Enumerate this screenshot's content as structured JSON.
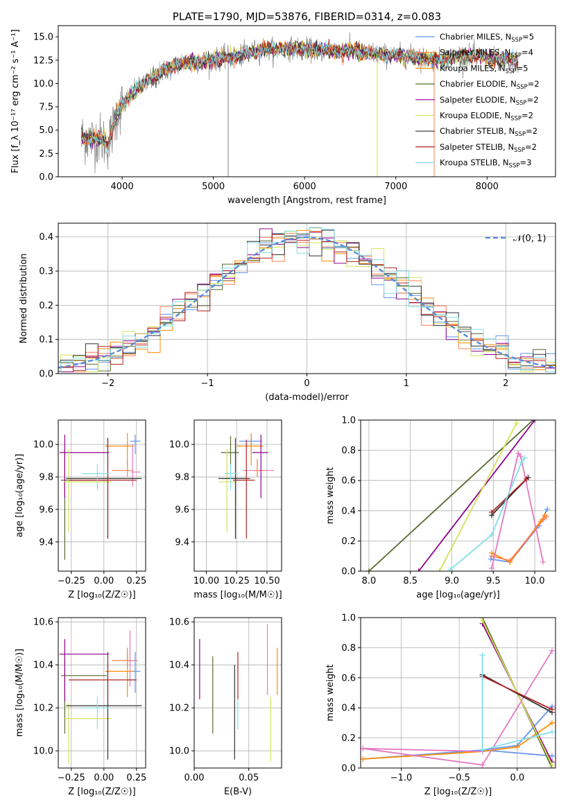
{
  "chart_data": [
    {
      "id": "spectrum",
      "type": "line",
      "title": "PLATE=1790, MJD=53876, FIBERID=0314, z=0.083",
      "xlabel": "wavelength [Angstrom, rest frame]",
      "ylabel": "Flux [f_λ 10⁻¹⁷ erg cm⁻² s⁻¹ A⁻¹]",
      "xlim": [
        3300,
        8750
      ],
      "ylim": [
        0,
        16.2
      ],
      "xticks": [
        4000,
        5000,
        6000,
        7000,
        8000
      ],
      "yticks": [
        0.0,
        2.5,
        5.0,
        7.5,
        10.0,
        12.5,
        15.0
      ],
      "data_color": "#808080",
      "profile": {
        "x": [
          3550,
          3650,
          3750,
          3850,
          3950,
          4100,
          4300,
          4500,
          4700,
          4900,
          5100,
          5300,
          5500,
          5700,
          5900,
          6100,
          6300,
          6500,
          6700,
          6900,
          7100,
          7300,
          7500,
          7700,
          7900,
          8100,
          8300
        ],
        "y": [
          4.3,
          4.0,
          4.1,
          3.5,
          7.0,
          8.8,
          10.4,
          11.6,
          12.2,
          12.4,
          12.7,
          13.0,
          13.6,
          13.7,
          13.8,
          13.6,
          13.5,
          13.5,
          13.3,
          13.0,
          13.0,
          12.7,
          12.5,
          13.0,
          12.9,
          12.6,
          12.4
        ]
      },
      "legend": [
        {
          "label": "Chabrier MILES, N",
          "sub": "SSP",
          "tail": "=5",
          "color": "#6495ed"
        },
        {
          "label": "Salpeter MILES, N",
          "sub": "SSP",
          "tail": "=4",
          "color": "#ff7f50"
        },
        {
          "label": "Kroupa MILES, N",
          "sub": "SSP",
          "tail": "=5",
          "color": "#ff8c00"
        },
        {
          "label": "Chabrier ELODIE, N",
          "sub": "SSP",
          "tail": "=2",
          "color": "#556b2f"
        },
        {
          "label": "Salpeter ELODIE, N",
          "sub": "SSP",
          "tail": "=2",
          "color": "#8b008b"
        },
        {
          "label": "Kroupa ELODIE, N",
          "sub": "SSP",
          "tail": "=2",
          "color": "#d4e157"
        },
        {
          "label": "Chabrier STELIB, N",
          "sub": "SSP",
          "tail": "=2",
          "color": "#2f2f2f"
        },
        {
          "label": "Salpeter STELIB, N",
          "sub": "SSP",
          "tail": "=2",
          "color": "#b22222"
        },
        {
          "label": "Kroupa STELIB, N",
          "sub": "SSP",
          "tail": "=3",
          "color": "#80deea"
        }
      ],
      "legend_position": "upper right"
    },
    {
      "id": "residuals",
      "type": "step",
      "xlabel": "(data-model)/error",
      "ylabel": "Normed distribution",
      "xlim": [
        -2.5,
        2.5
      ],
      "ylim": [
        0,
        0.44
      ],
      "xticks": [
        -2,
        -1,
        0,
        1,
        2
      ],
      "yticks": [
        0.0,
        0.1,
        0.2,
        0.3,
        0.4
      ],
      "gaussian_label": "𝒩(0, 1)",
      "gaussian_color": "#5b8ad6",
      "legend_position": "upper right",
      "colors": [
        "#6495ed",
        "#ff7f50",
        "#ff8c00",
        "#556b2f",
        "#8b008b",
        "#d4e157",
        "#2f2f2f",
        "#b22222",
        "#80deea"
      ]
    },
    {
      "id": "age_vs_Z",
      "type": "errorbar",
      "xlabel": "Z [log₁₀(Z/Z☉)]",
      "ylabel": "age  [log₁₀(age/yr)]",
      "xlim": [
        -0.35,
        0.32
      ],
      "ylim": [
        9.22,
        10.15
      ],
      "xticks": [
        -0.25,
        0.0,
        0.25
      ],
      "yticks": [
        9.4,
        9.6,
        9.8,
        10.0
      ],
      "points": [
        {
          "x": 0.24,
          "xerr": [
            0.04,
            0.04
          ],
          "y": 10.02,
          "yerr": [
            0.08,
            0.04
          ],
          "color": "#6495ed"
        },
        {
          "x": 0.18,
          "xerr": [
            0.17,
            0.05
          ],
          "y": 9.99,
          "yerr": [
            0.12,
            0.08
          ],
          "color": "#ff8c00"
        },
        {
          "x": 0.22,
          "xerr": [
            0.01,
            0.06
          ],
          "y": 9.83,
          "yerr": [
            0.09,
            0.17
          ],
          "color": "#e377c2"
        },
        {
          "x": 0.18,
          "xerr": [
            0.12,
            0.04
          ],
          "y": 9.84,
          "yerr": [
            0.04,
            0.07
          ],
          "color": "#ff7f50"
        },
        {
          "x": -0.3,
          "xerr": [
            0.03,
            0.32
          ],
          "y": 9.78,
          "yerr": [
            0.49,
            0.2
          ],
          "color": "#556b2f"
        },
        {
          "x": -0.3,
          "xerr": [
            0.04,
            0.34
          ],
          "y": 9.95,
          "yerr": [
            0.28,
            0.11
          ],
          "color": "#8b008b"
        },
        {
          "x": -0.27,
          "xerr": [
            0.04,
            0.33
          ],
          "y": 9.77,
          "yerr": [
            0.31,
            0.2
          ],
          "color": "#d4e157"
        },
        {
          "x": 0.03,
          "xerr": [
            0.32,
            0.26
          ],
          "y": 9.79,
          "yerr": [
            0.37,
            0.25
          ],
          "color": "#2f2f2f"
        },
        {
          "x": 0.03,
          "xerr": [
            0.3,
            0.22
          ],
          "y": 9.78,
          "yerr": [
            0.36,
            0.25
          ],
          "color": "#b22222"
        },
        {
          "x": -0.05,
          "xerr": [
            0.12,
            0.09
          ],
          "y": 9.82,
          "yerr": [
            0.1,
            0.06
          ],
          "color": "#80deea"
        }
      ]
    },
    {
      "id": "age_vs_mass",
      "type": "errorbar",
      "xlabel": "mass [log₁₀(M/M☉)]",
      "ylabel": "",
      "xlim": [
        9.9,
        10.62
      ],
      "ylim": [
        9.22,
        10.15
      ],
      "xticks": [
        10.0,
        10.25,
        10.5
      ],
      "yticks": [
        9.4,
        9.6,
        9.8,
        10.0
      ],
      "points": [
        {
          "x": 10.37,
          "xerr": [
            0.1,
            0.09
          ],
          "y": 10.02,
          "yerr": [
            0.08,
            0.04
          ],
          "color": "#6495ed"
        },
        {
          "x": 10.37,
          "xerr": [
            0.12,
            0.1
          ],
          "y": 9.99,
          "yerr": [
            0.12,
            0.08
          ],
          "color": "#ff8c00"
        },
        {
          "x": 10.42,
          "xerr": [
            0.12,
            0.14
          ],
          "y": 9.84,
          "yerr": [
            0.04,
            0.07
          ],
          "color": "#e377c2"
        },
        {
          "x": 10.42,
          "xerr": [
            0.03,
            0.06
          ],
          "y": 9.84,
          "yerr": [
            0.04,
            0.07
          ],
          "color": "#ff7f50"
        },
        {
          "x": 10.2,
          "xerr": [
            0.08,
            0.07
          ],
          "y": 9.95,
          "yerr": [
            0.1,
            0.1
          ],
          "color": "#556b2f"
        },
        {
          "x": 10.45,
          "xerr": [
            0.07,
            0.06
          ],
          "y": 9.95,
          "yerr": [
            0.28,
            0.11
          ],
          "color": "#8b008b"
        },
        {
          "x": 10.17,
          "xerr": [
            0.07,
            0.07
          ],
          "y": 9.77,
          "yerr": [
            0.31,
            0.2
          ],
          "color": "#d4e157"
        },
        {
          "x": 10.24,
          "xerr": [
            0.14,
            0.12
          ],
          "y": 9.79,
          "yerr": [
            0.37,
            0.25
          ],
          "color": "#2f2f2f"
        },
        {
          "x": 10.33,
          "xerr": [
            0.11,
            0.07
          ],
          "y": 9.78,
          "yerr": [
            0.36,
            0.25
          ],
          "color": "#b22222"
        },
        {
          "x": 10.2,
          "xerr": [
            0.05,
            0.05
          ],
          "y": 9.82,
          "yerr": [
            0.1,
            0.06
          ],
          "color": "#80deea"
        }
      ]
    },
    {
      "id": "weight_vs_age",
      "type": "line",
      "xlabel": "age  [log₁₀(age/yr)]",
      "ylabel": "mass weight",
      "xlim": [
        7.9,
        10.25
      ],
      "ylim": [
        0,
        1
      ],
      "xticks": [
        8.0,
        8.5,
        9.0,
        9.5,
        10.0
      ],
      "yticks": [
        0.0,
        0.2,
        0.4,
        0.6,
        0.8,
        1.0
      ],
      "series": [
        {
          "color": "#6495ed",
          "x": [
            9.47,
            9.7,
            10.05,
            10.15
          ],
          "y": [
            0.08,
            0.06,
            0.3,
            0.41
          ]
        },
        {
          "color": "#ff8c00",
          "x": [
            9.48,
            9.7,
            10.07,
            10.12
          ],
          "y": [
            0.12,
            0.06,
            0.33,
            0.37
          ]
        },
        {
          "color": "#ff7f50",
          "x": [
            9.48,
            9.7,
            10.1,
            10.14
          ],
          "y": [
            0.1,
            0.07,
            0.34,
            0.36
          ]
        },
        {
          "color": "#e377c2",
          "x": [
            9.48,
            9.8,
            9.83,
            10.1
          ],
          "y": [
            0.02,
            0.78,
            0.76,
            0.06
          ]
        },
        {
          "color": "#556b2f",
          "x": [
            8.0,
            9.98
          ],
          "y": [
            0.0,
            1.0
          ]
        },
        {
          "color": "#8b008b",
          "x": [
            8.6,
            10.0
          ],
          "y": [
            0.0,
            1.0
          ]
        },
        {
          "color": "#d4e157",
          "x": [
            8.85,
            9.78
          ],
          "y": [
            0.0,
            0.98
          ]
        },
        {
          "color": "#2f2f2f",
          "x": [
            9.48,
            9.92
          ],
          "y": [
            0.37,
            0.62
          ]
        },
        {
          "color": "#b22222",
          "x": [
            9.48,
            9.9
          ],
          "y": [
            0.39,
            0.61
          ]
        },
        {
          "color": "#80deea",
          "x": [
            8.98,
            9.48,
            9.84,
            9.88
          ],
          "y": [
            0.01,
            0.24,
            0.72,
            0.75
          ]
        }
      ]
    },
    {
      "id": "mass_vs_Z",
      "type": "errorbar",
      "xlabel": "Z [log₁₀(Z/Z☉)]",
      "ylabel": "mass [log₁₀(M/M☉)]",
      "xlim": [
        -0.35,
        0.32
      ],
      "ylim": [
        9.92,
        10.62
      ],
      "xticks": [
        -0.25,
        0.0,
        0.25
      ],
      "yticks": [
        10.0,
        10.2,
        10.4,
        10.6
      ],
      "points": [
        {
          "x": 0.24,
          "xerr": [
            0.04,
            0.04
          ],
          "y": 10.37,
          "yerr": [
            0.1,
            0.09
          ],
          "color": "#6495ed"
        },
        {
          "x": 0.18,
          "xerr": [
            0.17,
            0.05
          ],
          "y": 10.37,
          "yerr": [
            0.12,
            0.1
          ],
          "color": "#ff8c00"
        },
        {
          "x": 0.2,
          "xerr": [
            0.01,
            0.06
          ],
          "y": 10.42,
          "yerr": [
            0.12,
            0.14
          ],
          "color": "#e377c2"
        },
        {
          "x": 0.18,
          "xerr": [
            0.12,
            0.04
          ],
          "y": 10.42,
          "yerr": [
            0.03,
            0.06
          ],
          "color": "#ff7f50"
        },
        {
          "x": -0.3,
          "xerr": [
            0.03,
            0.32
          ],
          "y": 10.35,
          "yerr": [
            0.27,
            0.08
          ],
          "color": "#556b2f"
        },
        {
          "x": -0.3,
          "xerr": [
            0.04,
            0.34
          ],
          "y": 10.45,
          "yerr": [
            0.22,
            0.07
          ],
          "color": "#8b008b"
        },
        {
          "x": -0.27,
          "xerr": [
            0.04,
            0.33
          ],
          "y": 10.15,
          "yerr": [
            0.21,
            0.07
          ],
          "color": "#d4e157"
        },
        {
          "x": 0.03,
          "xerr": [
            0.32,
            0.26
          ],
          "y": 10.21,
          "yerr": [
            0.25,
            0.19
          ],
          "color": "#2f2f2f"
        },
        {
          "x": 0.03,
          "xerr": [
            0.3,
            0.22
          ],
          "y": 10.33,
          "yerr": [
            0.11,
            0.13
          ],
          "color": "#b22222"
        },
        {
          "x": -0.05,
          "xerr": [
            0.12,
            0.09
          ],
          "y": 10.2,
          "yerr": [
            0.1,
            0.05
          ],
          "color": "#80deea"
        }
      ]
    },
    {
      "id": "mass_vs_EBV",
      "type": "errorbar",
      "xlabel": "E(B-V)",
      "ylabel": "",
      "xlim": [
        0.0,
        0.08
      ],
      "ylim": [
        9.92,
        10.62
      ],
      "xticks": [
        0.0,
        0.05
      ],
      "yticks": [
        10.0,
        10.2,
        10.4,
        10.6
      ],
      "points": [
        {
          "x": 0.005,
          "y": 10.38,
          "yerr": [
            0.14,
            0.14
          ],
          "color": "#8b008b"
        },
        {
          "x": 0.017,
          "y": 10.26,
          "yerr": [
            0.18,
            0.18
          ],
          "color": "#556b2f"
        },
        {
          "x": 0.037,
          "y": 10.18,
          "yerr": [
            0.22,
            0.22
          ],
          "color": "#2f2f2f"
        },
        {
          "x": 0.04,
          "y": 10.35,
          "yerr": [
            0.11,
            0.11
          ],
          "color": "#b22222"
        },
        {
          "x": 0.04,
          "y": 10.17,
          "yerr": [
            0.07,
            0.07
          ],
          "color": "#80deea"
        },
        {
          "x": 0.067,
          "y": 10.42,
          "yerr": [
            0.16,
            0.17
          ],
          "color": "#e377c2"
        },
        {
          "x": 0.07,
          "y": 10.1,
          "yerr": [
            0.15,
            0.15
          ],
          "color": "#d4e157"
        },
        {
          "x": 0.076,
          "y": 10.37,
          "yerr": [
            0.11,
            0.11
          ],
          "color": "#ff8c00"
        }
      ]
    },
    {
      "id": "weight_vs_Z",
      "type": "line",
      "xlabel": "Z [log₁₀(Z/Z☉)]",
      "ylabel": "mass weight",
      "xlim": [
        -1.35,
        0.33
      ],
      "ylim": [
        0,
        1
      ],
      "xticks": [
        -1.0,
        -0.5,
        0.0
      ],
      "yticks": [
        0.0,
        0.2,
        0.4,
        0.6,
        0.8,
        1.0
      ],
      "series": [
        {
          "color": "#6495ed",
          "x": [
            -0.3,
            0.3
          ],
          "y": [
            0.12,
            0.08
          ]
        },
        {
          "color": "#6495ed",
          "x": [
            -1.33,
            -0.3,
            0.0,
            0.3
          ],
          "y": [
            0.06,
            0.12,
            0.15,
            0.41
          ]
        },
        {
          "color": "#ff8c00",
          "x": [
            -1.33,
            -0.3,
            0.0,
            0.3
          ],
          "y": [
            0.06,
            0.11,
            0.14,
            0.3
          ]
        },
        {
          "color": "#e377c2",
          "x": [
            -1.33,
            -0.3,
            0.3
          ],
          "y": [
            0.13,
            0.02,
            0.78
          ]
        },
        {
          "color": "#e377c2",
          "x": [
            -1.33,
            -0.3
          ],
          "y": [
            0.13,
            0.11
          ]
        },
        {
          "color": "#556b2f",
          "x": [
            -0.3,
            0.3
          ],
          "y": [
            1.0,
            0.0
          ]
        },
        {
          "color": "#8b008b",
          "x": [
            -0.3,
            0.3
          ],
          "y": [
            0.96,
            0.04
          ]
        },
        {
          "color": "#d4e157",
          "x": [
            -0.3,
            0.3
          ],
          "y": [
            0.98,
            0.02
          ]
        },
        {
          "color": "#2f2f2f",
          "x": [
            -0.3,
            0.3
          ],
          "y": [
            0.62,
            0.37
          ]
        },
        {
          "color": "#b22222",
          "x": [
            -0.3,
            0.3
          ],
          "y": [
            0.61,
            0.39
          ]
        },
        {
          "color": "#80deea",
          "x": [
            -0.3,
            -0.3,
            0.3
          ],
          "y": [
            0.75,
            0.12,
            0.24
          ]
        }
      ]
    }
  ]
}
